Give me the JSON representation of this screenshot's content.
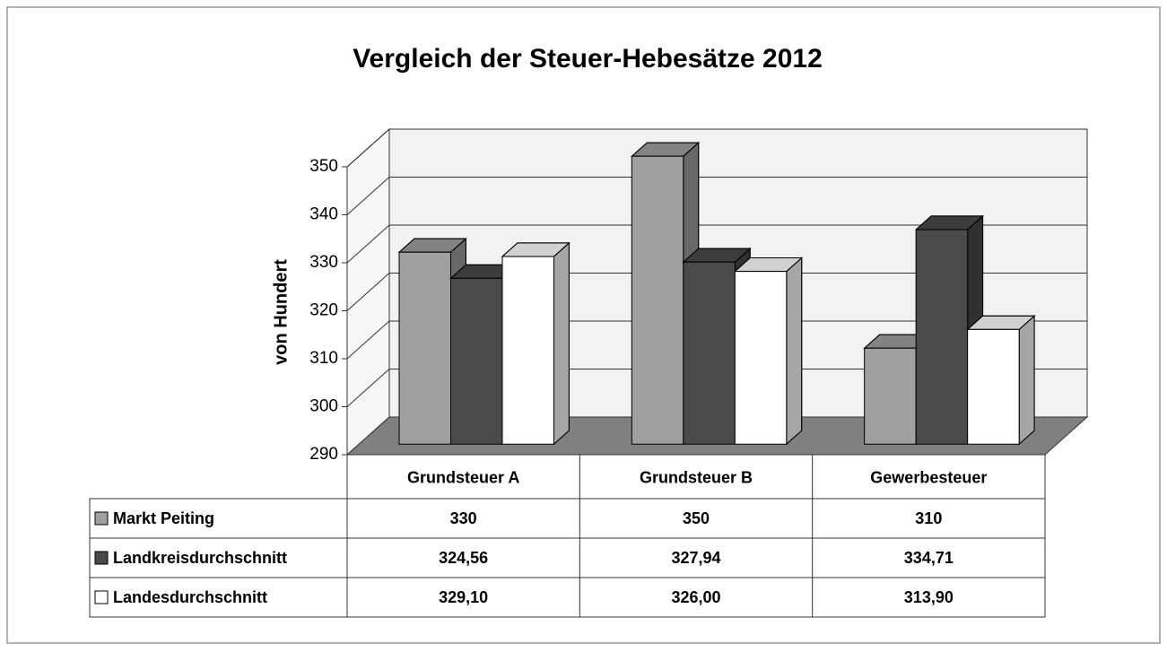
{
  "chart_data": {
    "type": "bar3d",
    "title": "Vergleich der Steuer-Hebesätze 2012",
    "y_label": "von Hundert",
    "categories": [
      "Grundsteuer A",
      "Grundsteuer B",
      "Gewerbesteuer"
    ],
    "series": [
      {
        "name": "Markt Peiting",
        "color": "#a0a0a0",
        "values": [
          330,
          350,
          310
        ],
        "value_labels": [
          "330",
          "350",
          "310"
        ]
      },
      {
        "name": "Landkreisdurchschnitt",
        "color": "#4a4a4a",
        "values": [
          324.56,
          327.94,
          334.71
        ],
        "value_labels": [
          "324,56",
          "327,94",
          "334,71"
        ]
      },
      {
        "name": "Landesdurchschnitt",
        "color": "#ffffff",
        "values": [
          329.1,
          326.0,
          313.9
        ],
        "value_labels": [
          "329,10",
          "326,00",
          "313,90"
        ]
      }
    ],
    "ylim": [
      290,
      350
    ],
    "yticks": [
      290,
      300,
      310,
      320,
      330,
      340,
      350
    ],
    "grid": true
  }
}
